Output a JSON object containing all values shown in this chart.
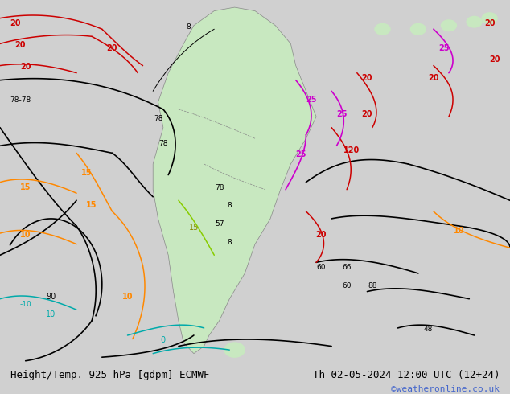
{
  "title_left": "Height/Temp. 925 hPa [gdpm] ECMWF",
  "title_right": "Th 02-05-2024 12:00 UTC (12+24)",
  "copyright": "©weatheronline.co.uk",
  "bg_color": "#d0d0d0",
  "map_ocean_color": "#d0d0d0",
  "map_land_color": "#e8e8e8",
  "fig_width": 6.34,
  "fig_height": 4.9,
  "dpi": 100,
  "bottom_bar_color": "#ffffff",
  "title_fontsize": 9,
  "copyright_color": "#4466cc",
  "copyright_fontsize": 8
}
